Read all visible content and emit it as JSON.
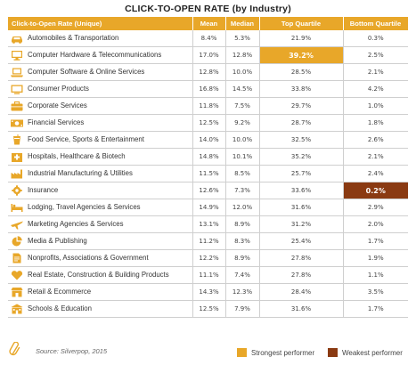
{
  "title": "CLICK-TO-OPEN RATE (by Industry)",
  "columns": [
    "Click-to-Open Rate (Unique)",
    "Mean",
    "Median",
    "Top Quartile",
    "Bottom Quartile"
  ],
  "rows": [
    {
      "industry": "Automobiles & Transportation",
      "icon": "car-icon",
      "mean": "8.4%",
      "median": "5.3%",
      "top": "21.9%",
      "bottom": "0.3%"
    },
    {
      "industry": "Computer Hardware & Telecommunications",
      "icon": "monitor-icon",
      "mean": "17.0%",
      "median": "12.8%",
      "top": "39.2%",
      "bottom": "2.5%"
    },
    {
      "industry": "Computer Software & Online Services",
      "icon": "laptop-icon",
      "mean": "12.8%",
      "median": "10.0%",
      "top": "28.5%",
      "bottom": "2.1%"
    },
    {
      "industry": "Consumer Products",
      "icon": "tv-icon",
      "mean": "16.8%",
      "median": "14.5%",
      "top": "33.8%",
      "bottom": "4.2%"
    },
    {
      "industry": "Corporate Services",
      "icon": "briefcase-icon",
      "mean": "11.8%",
      "median": "7.5%",
      "top": "29.7%",
      "bottom": "1.0%"
    },
    {
      "industry": "Financial Services",
      "icon": "money-icon",
      "mean": "12.5%",
      "median": "9.2%",
      "top": "28.7%",
      "bottom": "1.8%"
    },
    {
      "industry": "Food Service, Sports & Entertainment",
      "icon": "drink-icon",
      "mean": "14.0%",
      "median": "10.0%",
      "top": "32.5%",
      "bottom": "2.6%"
    },
    {
      "industry": "Hospitals, Healthcare & Biotech",
      "icon": "hospital-icon",
      "mean": "14.8%",
      "median": "10.1%",
      "top": "35.2%",
      "bottom": "2.1%"
    },
    {
      "industry": "Industrial Manufacturing & Utilities",
      "icon": "factory-icon",
      "mean": "11.5%",
      "median": "8.5%",
      "top": "25.7%",
      "bottom": "2.4%"
    },
    {
      "industry": "Insurance",
      "icon": "gear-icon",
      "mean": "12.6%",
      "median": "7.3%",
      "top": "33.6%",
      "bottom": "0.2%"
    },
    {
      "industry": "Lodging, Travel Agencies & Services",
      "icon": "bed-icon",
      "mean": "14.9%",
      "median": "12.0%",
      "top": "31.6%",
      "bottom": "2.9%"
    },
    {
      "industry": "Marketing Agencies & Services",
      "icon": "plane-icon",
      "mean": "13.1%",
      "median": "8.9%",
      "top": "31.2%",
      "bottom": "2.0%"
    },
    {
      "industry": "Media & Publishing",
      "icon": "pie-chart-icon",
      "mean": "11.2%",
      "median": "8.3%",
      "top": "25.4%",
      "bottom": "1.7%"
    },
    {
      "industry": "Nonprofits, Associations & Government",
      "icon": "document-icon",
      "mean": "12.2%",
      "median": "8.9%",
      "top": "27.8%",
      "bottom": "1.9%"
    },
    {
      "industry": "Real Estate, Construction & Building Products",
      "icon": "heart-icon",
      "mean": "11.1%",
      "median": "7.4%",
      "top": "27.8%",
      "bottom": "1.1%"
    },
    {
      "industry": "Retail & Ecommerce",
      "icon": "shop-icon",
      "mean": "14.3%",
      "median": "12.3%",
      "top": "28.4%",
      "bottom": "3.5%"
    },
    {
      "industry": "Schools & Education",
      "icon": "school-icon",
      "mean": "12.5%",
      "median": "7.9%",
      "top": "31.6%",
      "bottom": "1.7%"
    }
  ],
  "highlights": {
    "strongest_row": 1,
    "strongest_col": "top",
    "weakest_row": 9,
    "weakest_col": "bottom"
  },
  "source": "Source: Silverpop, 2015",
  "legend": {
    "strong_label": "Strongest performer",
    "weak_label": "Weakest performer"
  },
  "colors": {
    "accent": "#e8a729",
    "weak": "#8a3a12",
    "icon": "#e8a729"
  },
  "chart_data": {
    "type": "table",
    "title": "CLICK-TO-OPEN RATE (by Industry)",
    "columns": [
      "Click-to-Open Rate (Unique)",
      "Mean",
      "Median",
      "Top Quartile",
      "Bottom Quartile"
    ],
    "categories": [
      "Automobiles & Transportation",
      "Computer Hardware & Telecommunications",
      "Computer Software & Online Services",
      "Consumer Products",
      "Corporate Services",
      "Financial Services",
      "Food Service, Sports & Entertainment",
      "Hospitals, Healthcare & Biotech",
      "Industrial Manufacturing & Utilities",
      "Insurance",
      "Lodging, Travel Agencies & Services",
      "Marketing Agencies & Services",
      "Media & Publishing",
      "Nonprofits, Associations & Government",
      "Real Estate, Construction & Building Products",
      "Retail & Ecommerce",
      "Schools & Education"
    ],
    "series": [
      {
        "name": "Mean",
        "values": [
          8.4,
          17.0,
          12.8,
          16.8,
          11.8,
          12.5,
          14.0,
          14.8,
          11.5,
          12.6,
          14.9,
          13.1,
          11.2,
          12.2,
          11.1,
          14.3,
          12.5
        ]
      },
      {
        "name": "Median",
        "values": [
          5.3,
          12.8,
          10.0,
          14.5,
          7.5,
          9.2,
          10.0,
          10.1,
          8.5,
          7.3,
          12.0,
          8.9,
          8.3,
          8.9,
          7.4,
          12.3,
          7.9
        ]
      },
      {
        "name": "Top Quartile",
        "values": [
          21.9,
          39.2,
          28.5,
          33.8,
          29.7,
          28.7,
          32.5,
          35.2,
          25.7,
          33.6,
          31.6,
          31.2,
          25.4,
          27.8,
          27.8,
          28.4,
          31.6
        ]
      },
      {
        "name": "Bottom Quartile",
        "values": [
          0.3,
          2.5,
          2.1,
          4.2,
          1.0,
          1.8,
          2.6,
          2.1,
          2.4,
          0.2,
          2.9,
          2.0,
          1.7,
          1.9,
          1.1,
          3.5,
          1.7
        ]
      }
    ],
    "unit": "%",
    "legend": [
      "Strongest performer",
      "Weakest performer"
    ]
  }
}
